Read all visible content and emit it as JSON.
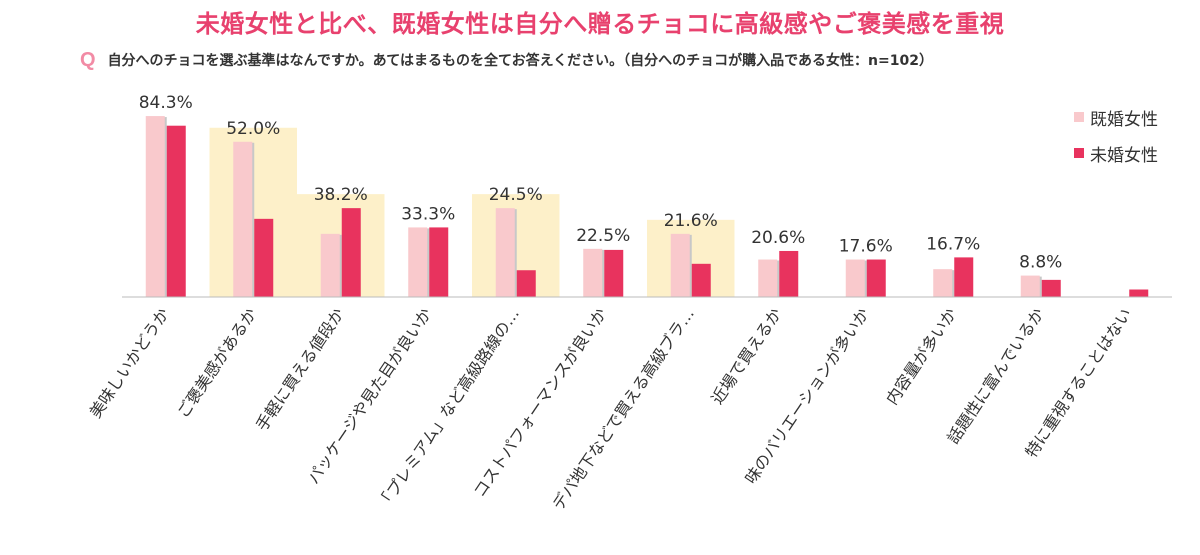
{
  "headline": "未婚女性と比べ、既婚女性は自分へ贈るチョコに高級感やご褒美感を重視",
  "question": {
    "marker": "Q",
    "text": "自分へのチョコを選ぶ基準はなんですか。あてはまるものを全てお答えください。（自分へのチョコが購入品である女性：n=102）"
  },
  "colors": {
    "headline": "#e8416e",
    "married": "#f9c9cc",
    "unmarried": "#e8335e",
    "highlight": "#fdf0c9",
    "axis": "#bbbbbb"
  },
  "chart_data": {
    "type": "bar",
    "title": "自分へのチョコを選ぶ基準",
    "categories": [
      "美味しいかどうか",
      "ご褒美感があるか",
      "手軽に買える値段か",
      "パッケージや見た目が良いか",
      "「プレミアム」など高級路線の…",
      "コストパフォーマンスが良いか",
      "デパ地下などで買える高級ブラ…",
      "近場で買えるか",
      "味のバリエーションが多いか",
      "内容量が多いか",
      "話題性に富んでいるか",
      "特に重視することはない"
    ],
    "data_labels": [
      "84.3%",
      "52.0%",
      "38.2%",
      "33.3%",
      "24.5%",
      "22.5%",
      "21.6%",
      "20.6%",
      "17.6%",
      "16.7%",
      "8.8%",
      ""
    ],
    "series": [
      {
        "name": "既婚女性",
        "values": [
          84.5,
          72.5,
          29.5,
          32.5,
          41.5,
          22.5,
          29.5,
          17.5,
          17.5,
          13.0,
          10.0,
          0
        ]
      },
      {
        "name": "未婚女性",
        "values": [
          80.0,
          36.5,
          41.5,
          32.5,
          12.5,
          22.0,
          15.5,
          21.5,
          17.5,
          18.5,
          8.0,
          3.5
        ]
      }
    ],
    "highlighted_categories": [
      1,
      2,
      4,
      6
    ],
    "ylim": [
      0,
      85
    ],
    "xlabel": "",
    "ylabel": "",
    "legend_position": "top-right"
  }
}
